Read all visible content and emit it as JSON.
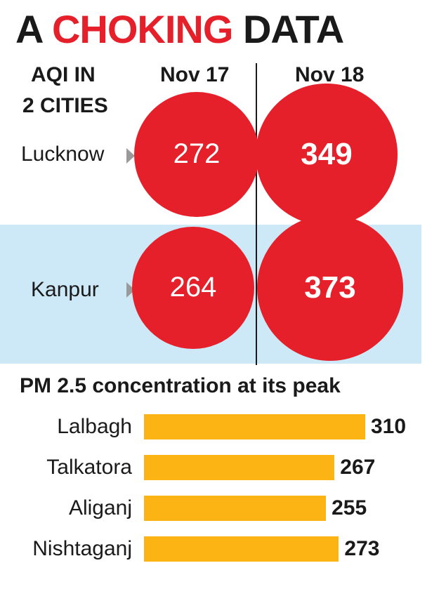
{
  "title": {
    "part1": "A",
    "part2": "CHOKING",
    "part3": "DATA"
  },
  "colors": {
    "accent": "#e5202a",
    "band": "#cde8f6",
    "bar": "#fbb414",
    "arrow": "#9a9a9a"
  },
  "chart_data": [
    {
      "type": "bubble",
      "title": "AQI IN\n2 CITIES",
      "title_lines": [
        "AQI IN",
        "2 CITIES"
      ],
      "columns": [
        "Nov 17",
        "Nov 18"
      ],
      "rows": [
        {
          "city": "Lucknow",
          "values": [
            272,
            349
          ]
        },
        {
          "city": "Kanpur",
          "values": [
            264,
            373
          ]
        }
      ]
    },
    {
      "type": "bar",
      "orientation": "horizontal",
      "title": "PM 2.5 concentration at its peak",
      "categories": [
        "Lalbagh",
        "Talkatora",
        "Aliganj",
        "Nishtaganj"
      ],
      "values": [
        310,
        267,
        255,
        273
      ],
      "xlim": [
        0,
        310
      ]
    }
  ]
}
